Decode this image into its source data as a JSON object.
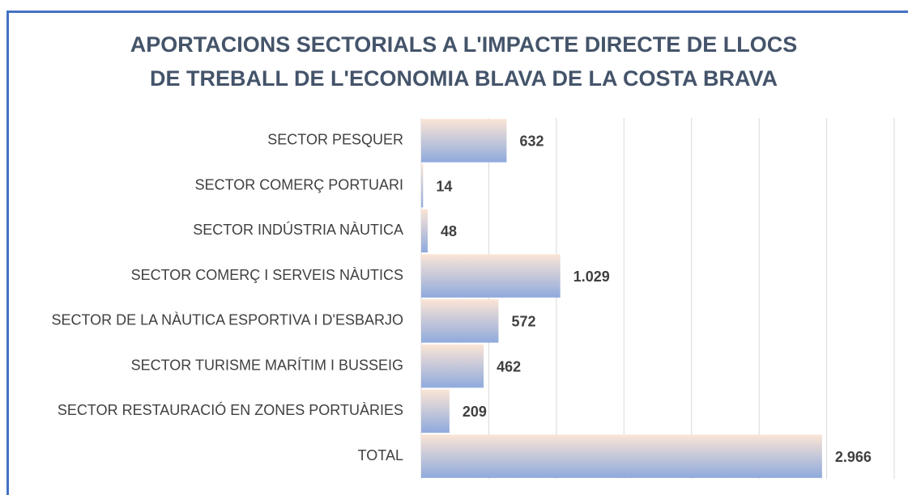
{
  "chart_data": {
    "type": "barh",
    "title": "APORTACIONS SECTORIALS A L'IMPACTE  DIRECTE DE LLOCS DE TREBALL DE L'ECONOMIA BLAVA DE LA COSTA BRAVA",
    "categories": [
      "SECTOR PESQUER",
      "SECTOR COMERÇ PORTUARI",
      "SECTOR INDÚSTRIA NÀUTICA",
      "SECTOR COMERÇ I SERVEIS NÀUTICS",
      "SECTOR DE LA NÀUTICA ESPORTIVA I D'ESBARJO",
      "SECTOR TURISME MARÍTIM I BUSSEIG",
      "SECTOR RESTAURACIÓ EN ZONES PORTUÀRIES",
      "TOTAL"
    ],
    "values": [
      632,
      14,
      48,
      1029,
      572,
      462,
      209,
      2966
    ],
    "value_labels": [
      "632",
      "14",
      "48",
      "1.029",
      "572",
      "462",
      "209",
      "2.966"
    ],
    "color": "#8faadc",
    "xlim": [
      0,
      3500
    ],
    "xticks": [
      0,
      500,
      1000,
      1500,
      2000,
      2500,
      3000,
      3500
    ],
    "grid": true
  }
}
